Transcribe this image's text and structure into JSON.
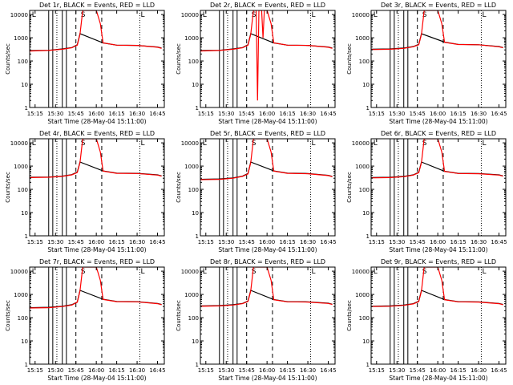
{
  "ui": {
    "colors": {
      "background": "#ffffff",
      "axis": "#000000",
      "events_series": "#000000",
      "lld_series": "#ff0000"
    }
  },
  "chart_data": [
    {
      "type": "line",
      "title": "Det 1r, BLACK = Events, RED = LLD",
      "xlabel": "Start Time (28-May-04 15:11:00)",
      "ylabel": "Counts/sec",
      "y_scale": "log",
      "ylim": [
        1,
        15000
      ],
      "xlim": [
        "15:11",
        "16:50"
      ],
      "x_ticks": [
        "15:15",
        "15:30",
        "15:45",
        "16:00",
        "16:15",
        "16:30",
        "16:45"
      ],
      "y_ticks": [
        "1",
        "10",
        "100",
        "1000",
        "10000"
      ],
      "annotations": [
        "S",
        "L",
        "L"
      ],
      "series": [
        {
          "name": "BLACK = Events",
          "color": "#000000",
          "x": [
            "15:11",
            "15:25",
            "15:35",
            "15:42",
            "15:46",
            "15:48",
            "16:05",
            "16:15",
            "16:30",
            "16:45",
            "16:48"
          ],
          "y": [
            280,
            290,
            330,
            380,
            500,
            1500,
            600,
            480,
            470,
            400,
            360
          ]
        },
        {
          "name": "RED = LLD",
          "color": "#ff0000",
          "x": [
            "15:11",
            "15:25",
            "15:35",
            "15:42",
            "15:46",
            "15:48",
            "15:50",
            "16:00",
            "16:03",
            "16:05",
            "16:15",
            "16:30",
            "16:45",
            "16:48"
          ],
          "y": [
            270,
            285,
            320,
            370,
            480,
            1400,
            15000,
            15000,
            4000,
            600,
            480,
            470,
            390,
            350
          ]
        }
      ]
    },
    {
      "type": "line",
      "title": "Det 2r, BLACK = Events, RED = LLD",
      "xlabel": "Start Time (28-May-04 15:11:00)",
      "ylabel": "Counts/sec",
      "y_scale": "log",
      "ylim": [
        1,
        15000
      ],
      "xlim": [
        "15:11",
        "16:50"
      ],
      "x_ticks": [
        "15:15",
        "15:30",
        "15:45",
        "16:00",
        "16:15",
        "16:30",
        "16:45"
      ],
      "y_ticks": [
        "1",
        "10",
        "100",
        "1000",
        "10000"
      ],
      "annotations": [
        "S",
        "L",
        "L"
      ],
      "series": [
        {
          "name": "BLACK = Events",
          "color": "#000000",
          "x": [
            "15:11",
            "15:25",
            "15:35",
            "15:42",
            "15:46",
            "15:48",
            "16:05",
            "16:15",
            "16:30",
            "16:45",
            "16:48"
          ],
          "y": [
            280,
            290,
            330,
            380,
            500,
            1500,
            600,
            480,
            470,
            400,
            360
          ]
        },
        {
          "name": "RED = LLD",
          "color": "#ff0000",
          "x": [
            "15:11",
            "15:25",
            "15:35",
            "15:42",
            "15:46",
            "15:48",
            "15:50",
            "15:52",
            "15:53",
            "15:54",
            "15:56",
            "15:57",
            "15:58",
            "16:00",
            "16:03",
            "16:05",
            "16:15",
            "16:30",
            "16:45",
            "16:48"
          ],
          "y": [
            270,
            285,
            320,
            370,
            480,
            1400,
            15000,
            15000,
            2,
            15000,
            15000,
            1000,
            15000,
            15000,
            4000,
            600,
            480,
            470,
            390,
            350
          ]
        }
      ]
    },
    {
      "type": "line",
      "title": "Det 3r, BLACK = Events, RED = LLD",
      "xlabel": "Start Time (28-May-04 15:11:00)",
      "ylabel": "Counts/sec",
      "y_scale": "log",
      "ylim": [
        1,
        15000
      ],
      "xlim": [
        "15:11",
        "16:50"
      ],
      "x_ticks": [
        "15:15",
        "15:30",
        "15:45",
        "16:00",
        "16:15",
        "16:30",
        "16:45"
      ],
      "y_ticks": [
        "1",
        "10",
        "100",
        "1000",
        "10000"
      ],
      "annotations": [
        "S",
        "L",
        "L"
      ],
      "series": [
        {
          "name": "BLACK = Events",
          "color": "#000000",
          "x": [
            "15:11",
            "15:25",
            "15:35",
            "15:42",
            "15:46",
            "15:48",
            "16:05",
            "16:15",
            "16:30",
            "16:45",
            "16:48"
          ],
          "y": [
            320,
            330,
            360,
            420,
            520,
            1500,
            650,
            520,
            500,
            420,
            380
          ]
        },
        {
          "name": "RED = LLD",
          "color": "#ff0000",
          "x": [
            "15:11",
            "15:25",
            "15:35",
            "15:42",
            "15:46",
            "15:48",
            "15:50",
            "16:00",
            "16:03",
            "16:05",
            "16:15",
            "16:30",
            "16:45",
            "16:48"
          ],
          "y": [
            310,
            320,
            350,
            410,
            500,
            1400,
            15000,
            15000,
            4000,
            640,
            510,
            500,
            410,
            370
          ]
        }
      ]
    },
    {
      "type": "line",
      "title": "Det 4r, BLACK = Events, RED = LLD",
      "xlabel": "Start Time (28-May-04 15:11:00)",
      "ylabel": "Counts/sec",
      "y_scale": "log",
      "ylim": [
        1,
        15000
      ],
      "xlim": [
        "15:11",
        "16:50"
      ],
      "x_ticks": [
        "15:15",
        "15:30",
        "15:45",
        "16:00",
        "16:15",
        "16:30",
        "16:45"
      ],
      "y_ticks": [
        "1",
        "10",
        "100",
        "1000",
        "10000"
      ],
      "annotations": [
        "S",
        "L",
        "L"
      ],
      "series": [
        {
          "name": "BLACK = Events",
          "color": "#000000",
          "x": [
            "15:11",
            "15:25",
            "15:35",
            "15:42",
            "15:46",
            "15:48",
            "16:05",
            "16:15",
            "16:30",
            "16:45",
            "16:48"
          ],
          "y": [
            330,
            340,
            370,
            430,
            550,
            1500,
            620,
            500,
            490,
            420,
            380
          ]
        },
        {
          "name": "RED = LLD",
          "color": "#ff0000",
          "x": [
            "15:11",
            "15:25",
            "15:35",
            "15:42",
            "15:46",
            "15:48",
            "15:50",
            "16:00",
            "16:03",
            "16:05",
            "16:15",
            "16:30",
            "16:45",
            "16:48"
          ],
          "y": [
            320,
            330,
            360,
            420,
            530,
            1400,
            15000,
            15000,
            4000,
            610,
            490,
            480,
            410,
            370
          ]
        }
      ]
    },
    {
      "type": "line",
      "title": "Det 5r, BLACK = Events, RED = LLD",
      "xlabel": "Start Time (28-May-04 15:11:00)",
      "ylabel": "Counts/sec",
      "y_scale": "log",
      "ylim": [
        1,
        15000
      ],
      "xlim": [
        "15:11",
        "16:50"
      ],
      "x_ticks": [
        "15:15",
        "15:30",
        "15:45",
        "16:00",
        "16:15",
        "16:30",
        "16:45"
      ],
      "y_ticks": [
        "1",
        "10",
        "100",
        "1000",
        "10000"
      ],
      "annotations": [
        "S",
        "L",
        "L"
      ],
      "series": [
        {
          "name": "BLACK = Events",
          "color": "#000000",
          "x": [
            "15:11",
            "15:25",
            "15:35",
            "15:42",
            "15:46",
            "15:48",
            "16:05",
            "16:15",
            "16:30",
            "16:45",
            "16:48"
          ],
          "y": [
            270,
            280,
            310,
            370,
            480,
            1500,
            620,
            500,
            480,
            400,
            360
          ]
        },
        {
          "name": "RED = LLD",
          "color": "#ff0000",
          "x": [
            "15:11",
            "15:25",
            "15:35",
            "15:42",
            "15:46",
            "15:48",
            "15:50",
            "16:00",
            "16:03",
            "16:05",
            "16:15",
            "16:30",
            "16:45",
            "16:48"
          ],
          "y": [
            260,
            270,
            300,
            360,
            460,
            1400,
            15000,
            15000,
            4000,
            610,
            490,
            470,
            390,
            350
          ]
        }
      ]
    },
    {
      "type": "line",
      "title": "Det 6r, BLACK = Events, RED = LLD",
      "xlabel": "Start Time (28-May-04 15:11:00)",
      "ylabel": "Counts/sec",
      "y_scale": "log",
      "ylim": [
        1,
        15000
      ],
      "xlim": [
        "15:11",
        "16:50"
      ],
      "x_ticks": [
        "15:15",
        "15:30",
        "15:45",
        "16:00",
        "16:15",
        "16:30",
        "16:45"
      ],
      "y_ticks": [
        "1",
        "10",
        "100",
        "1000",
        "10000"
      ],
      "annotations": [
        "S",
        "L",
        "L"
      ],
      "series": [
        {
          "name": "BLACK = Events",
          "color": "#000000",
          "x": [
            "15:11",
            "15:25",
            "15:35",
            "15:42",
            "15:46",
            "15:48",
            "16:05",
            "16:15",
            "16:30",
            "16:45",
            "16:48"
          ],
          "y": [
            320,
            330,
            360,
            420,
            540,
            1500,
            600,
            490,
            480,
            420,
            380
          ]
        },
        {
          "name": "RED = LLD",
          "color": "#ff0000",
          "x": [
            "15:11",
            "15:25",
            "15:35",
            "15:42",
            "15:46",
            "15:48",
            "15:50",
            "16:00",
            "16:03",
            "16:05",
            "16:15",
            "16:30",
            "16:45",
            "16:48"
          ],
          "y": [
            310,
            320,
            350,
            410,
            520,
            1400,
            15000,
            15000,
            4000,
            590,
            480,
            470,
            410,
            370
          ]
        }
      ]
    },
    {
      "type": "line",
      "title": "Det 7r, BLACK = Events, RED = LLD",
      "xlabel": "Start Time (28-May-04 15:11:00)",
      "ylabel": "Counts/sec",
      "y_scale": "log",
      "ylim": [
        1,
        15000
      ],
      "xlim": [
        "15:11",
        "16:50"
      ],
      "x_ticks": [
        "15:15",
        "15:30",
        "15:45",
        "16:00",
        "16:15",
        "16:30",
        "16:45"
      ],
      "y_ticks": [
        "1",
        "10",
        "100",
        "1000",
        "10000"
      ],
      "annotations": [
        "S",
        "L",
        "L"
      ],
      "series": [
        {
          "name": "BLACK = Events",
          "color": "#000000",
          "x": [
            "15:11",
            "15:25",
            "15:35",
            "15:42",
            "15:46",
            "15:48",
            "16:05",
            "16:15",
            "16:30",
            "16:45",
            "16:48"
          ],
          "y": [
            270,
            280,
            310,
            360,
            470,
            1500,
            620,
            500,
            490,
            410,
            370
          ]
        },
        {
          "name": "RED = LLD",
          "color": "#ff0000",
          "x": [
            "15:11",
            "15:25",
            "15:35",
            "15:42",
            "15:46",
            "15:48",
            "15:50",
            "16:00",
            "16:03",
            "16:05",
            "16:15",
            "16:30",
            "16:45",
            "16:48"
          ],
          "y": [
            260,
            270,
            300,
            350,
            460,
            1400,
            15000,
            15000,
            4000,
            610,
            490,
            480,
            400,
            360
          ]
        }
      ]
    },
    {
      "type": "line",
      "title": "Det 8r, BLACK = Events, RED = LLD",
      "xlabel": "Start Time (28-May-04 15:11:00)",
      "ylabel": "Counts/sec",
      "y_scale": "log",
      "ylim": [
        1,
        15000
      ],
      "xlim": [
        "15:11",
        "16:50"
      ],
      "x_ticks": [
        "15:15",
        "15:30",
        "15:45",
        "16:00",
        "16:15",
        "16:30",
        "16:45"
      ],
      "y_ticks": [
        "1",
        "10",
        "100",
        "1000",
        "10000"
      ],
      "annotations": [
        "S",
        "L",
        "L"
      ],
      "series": [
        {
          "name": "BLACK = Events",
          "color": "#000000",
          "x": [
            "15:11",
            "15:25",
            "15:35",
            "15:42",
            "15:46",
            "15:48",
            "16:05",
            "16:15",
            "16:30",
            "16:45",
            "16:48"
          ],
          "y": [
            320,
            330,
            360,
            410,
            520,
            1500,
            600,
            490,
            480,
            420,
            380
          ]
        },
        {
          "name": "RED = LLD",
          "color": "#ff0000",
          "x": [
            "15:11",
            "15:25",
            "15:35",
            "15:42",
            "15:46",
            "15:48",
            "15:50",
            "16:00",
            "16:03",
            "16:05",
            "16:15",
            "16:30",
            "16:45",
            "16:48"
          ],
          "y": [
            310,
            320,
            350,
            400,
            500,
            1400,
            15000,
            15000,
            4000,
            590,
            480,
            470,
            410,
            370
          ]
        }
      ]
    },
    {
      "type": "line",
      "title": "Det 9r, BLACK = Events, RED = LLD",
      "xlabel": "Start Time (28-May-04 15:11:00)",
      "ylabel": "Counts/sec",
      "y_scale": "log",
      "ylim": [
        1,
        15000
      ],
      "xlim": [
        "15:11",
        "16:50"
      ],
      "x_ticks": [
        "15:15",
        "15:30",
        "15:45",
        "16:00",
        "16:15",
        "16:30",
        "16:45"
      ],
      "y_ticks": [
        "1",
        "10",
        "100",
        "1000",
        "10000"
      ],
      "annotations": [
        "S",
        "L",
        "L"
      ],
      "series": [
        {
          "name": "BLACK = Events",
          "color": "#000000",
          "x": [
            "15:11",
            "15:25",
            "15:35",
            "15:42",
            "15:46",
            "15:48",
            "16:05",
            "16:15",
            "16:30",
            "16:45",
            "16:48"
          ],
          "y": [
            310,
            320,
            350,
            400,
            510,
            1500,
            600,
            490,
            480,
            410,
            370
          ]
        },
        {
          "name": "RED = LLD",
          "color": "#ff0000",
          "x": [
            "15:11",
            "15:25",
            "15:35",
            "15:42",
            "15:46",
            "15:48",
            "15:50",
            "16:00",
            "16:03",
            "16:05",
            "16:15",
            "16:30",
            "16:45",
            "16:48"
          ],
          "y": [
            300,
            310,
            340,
            390,
            490,
            1400,
            15000,
            15000,
            4000,
            590,
            480,
            470,
            400,
            360
          ]
        }
      ]
    }
  ]
}
